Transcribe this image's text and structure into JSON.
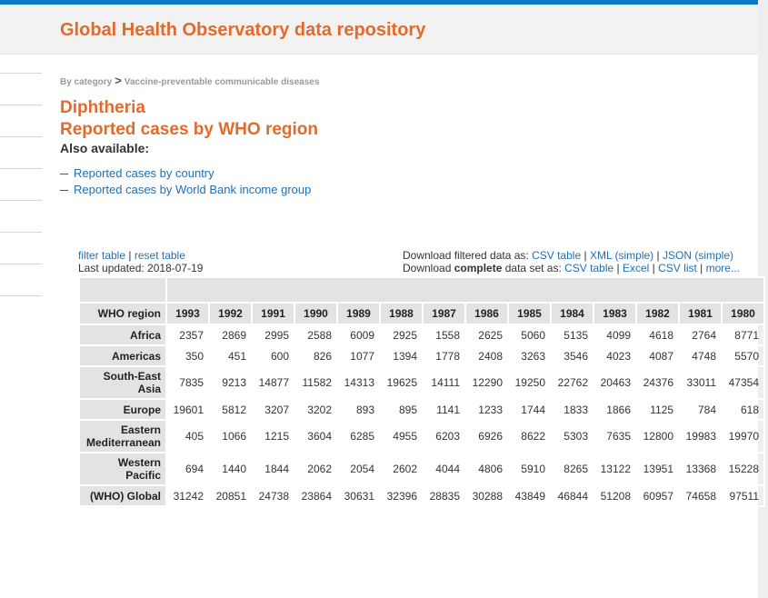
{
  "header": {
    "title": "Global Health Observatory data repository"
  },
  "breadcrumb": {
    "root": "By category",
    "separator": ">",
    "current": "Vaccine-preventable communicable diseases"
  },
  "page": {
    "title_line1": "Diphtheria",
    "title_line2": "Reported cases by WHO region",
    "also_available": "Also available:"
  },
  "also_links": [
    "Reported cases by country",
    "Reported cases by World Bank income group"
  ],
  "tools": {
    "filter": "filter table",
    "sep": "|",
    "reset": "reset table",
    "last_updated": "Last updated: 2018-07-19"
  },
  "download": {
    "filtered_label": "Download filtered data as:",
    "filtered_csv": "CSV table",
    "filtered_xml": "XML (simple)",
    "filtered_json": "JSON (simple)",
    "complete_prefix": "Download",
    "complete_bold": "complete",
    "complete_suffix": "data set as:",
    "complete_csv": "CSV table",
    "complete_excel": "Excel",
    "complete_csvlist": "CSV list",
    "complete_more": "more..."
  },
  "table": {
    "row_header_label": "WHO region",
    "years": [
      "1993",
      "1992",
      "1991",
      "1990",
      "1989",
      "1988",
      "1987",
      "1986",
      "1985",
      "1984",
      "1983",
      "1982",
      "1981",
      "1980"
    ],
    "rows": [
      {
        "region": "Africa",
        "values": [
          "2357",
          "2869",
          "2995",
          "2588",
          "6009",
          "2925",
          "1558",
          "2625",
          "5060",
          "5135",
          "4099",
          "4618",
          "2764",
          "8771"
        ]
      },
      {
        "region": "Americas",
        "values": [
          "350",
          "451",
          "600",
          "826",
          "1077",
          "1394",
          "1778",
          "2408",
          "3263",
          "3546",
          "4023",
          "4087",
          "4748",
          "5570"
        ]
      },
      {
        "region": "South-East Asia",
        "values": [
          "7835",
          "9213",
          "14877",
          "11582",
          "14313",
          "19625",
          "14111",
          "12290",
          "19250",
          "22762",
          "20463",
          "24376",
          "33011",
          "47354"
        ]
      },
      {
        "region": "Europe",
        "values": [
          "19601",
          "5812",
          "3207",
          "3202",
          "893",
          "895",
          "1141",
          "1233",
          "1744",
          "1833",
          "1866",
          "1125",
          "784",
          "618"
        ]
      },
      {
        "region": "Eastern Mediterranean",
        "values": [
          "405",
          "1066",
          "1215",
          "3604",
          "6285",
          "4955",
          "6203",
          "6926",
          "8622",
          "5303",
          "7635",
          "12800",
          "19983",
          "19970"
        ]
      },
      {
        "region": "Western Pacific",
        "values": [
          "694",
          "1440",
          "1844",
          "2062",
          "2054",
          "2602",
          "4044",
          "4806",
          "5910",
          "8265",
          "13122",
          "13951",
          "13368",
          "15228"
        ]
      },
      {
        "region": "(WHO) Global",
        "values": [
          "31242",
          "20851",
          "24738",
          "23864",
          "30631",
          "32396",
          "28835",
          "30288",
          "43849",
          "46844",
          "51208",
          "60957",
          "74658",
          "97511"
        ]
      }
    ]
  }
}
